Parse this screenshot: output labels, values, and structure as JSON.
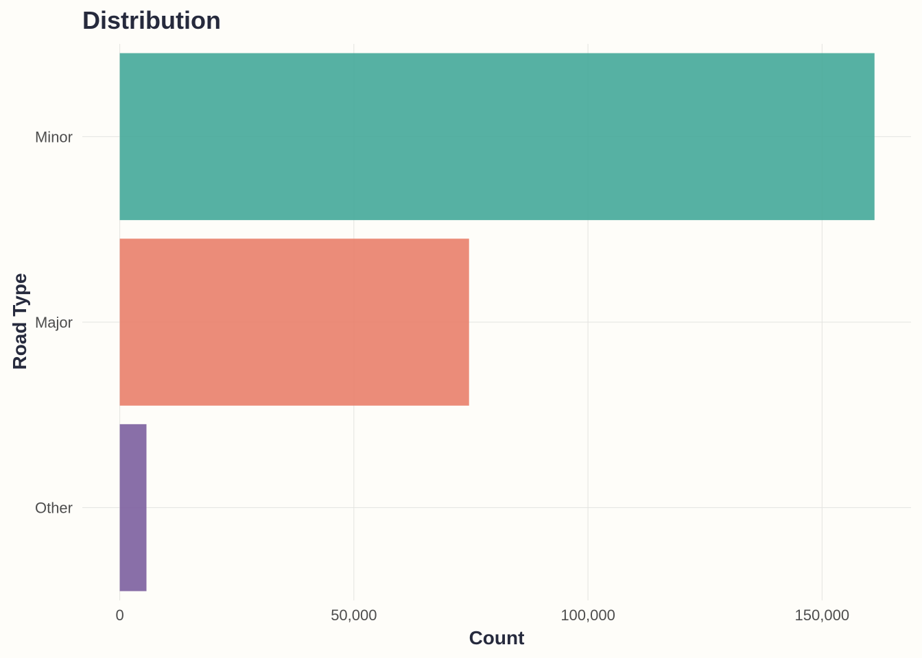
{
  "chart_data": {
    "type": "bar",
    "orientation": "horizontal",
    "title": "Distribution",
    "xlabel": "Count",
    "ylabel": "Road Type",
    "categories": [
      "Minor",
      "Major",
      "Other"
    ],
    "values": [
      161200,
      74600,
      5700
    ],
    "colors": [
      "#44a899",
      "#e9806a",
      "#7c5f9f"
    ],
    "xlim": [
      -8000,
      169000
    ],
    "x_ticks": [
      0,
      50000,
      100000,
      150000
    ],
    "x_tick_labels": [
      "0",
      "50,000",
      "100,000",
      "150,000"
    ],
    "grid": true,
    "legend": "none"
  }
}
